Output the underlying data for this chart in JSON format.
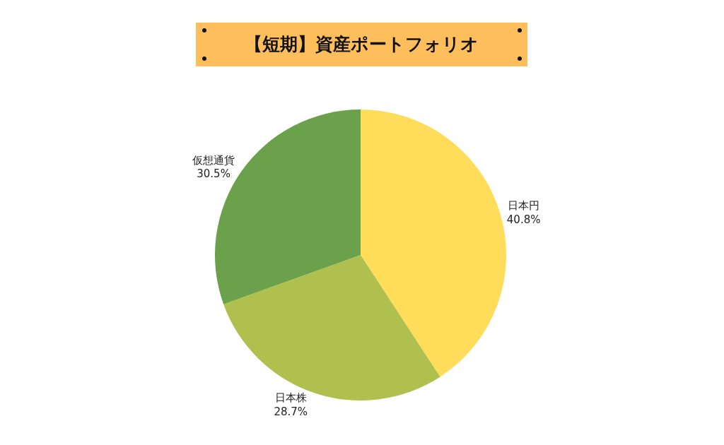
{
  "chart_data": {
    "type": "pie",
    "title": "【短期】資産ポートフォリオ",
    "categories": [
      "日本円",
      "日本株",
      "仮想通貨"
    ],
    "values": [
      40.8,
      28.7,
      30.5
    ],
    "value_labels": [
      "40.8%",
      "28.7%",
      "30.5%"
    ],
    "colors": [
      "#ffdc5a",
      "#b0c04e",
      "#6aa14a"
    ],
    "legend": false
  }
}
